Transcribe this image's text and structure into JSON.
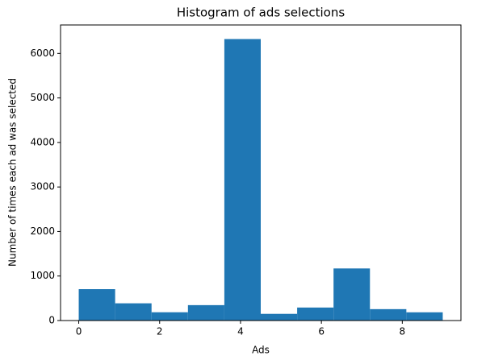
{
  "chart_data": {
    "type": "histogram",
    "title": "Histogram of ads selections",
    "x_label": "Ads",
    "y_label": "Number of times each ad was selected",
    "bins": [
      0,
      0.9,
      1.8,
      2.7,
      3.6,
      4.5,
      5.4,
      6.3,
      7.2,
      8.1,
      9
    ],
    "values": [
      705,
      387,
      186,
      346,
      6323,
      150,
      292,
      1170,
      256,
      185
    ],
    "color": "#1f77b4",
    "xlim": [
      -0.45,
      9.45
    ],
    "ylim": [
      0,
      6639
    ],
    "xticks": [
      0,
      2,
      4,
      6,
      8
    ],
    "yticks": [
      0,
      1000,
      2000,
      3000,
      4000,
      5000,
      6000
    ]
  }
}
